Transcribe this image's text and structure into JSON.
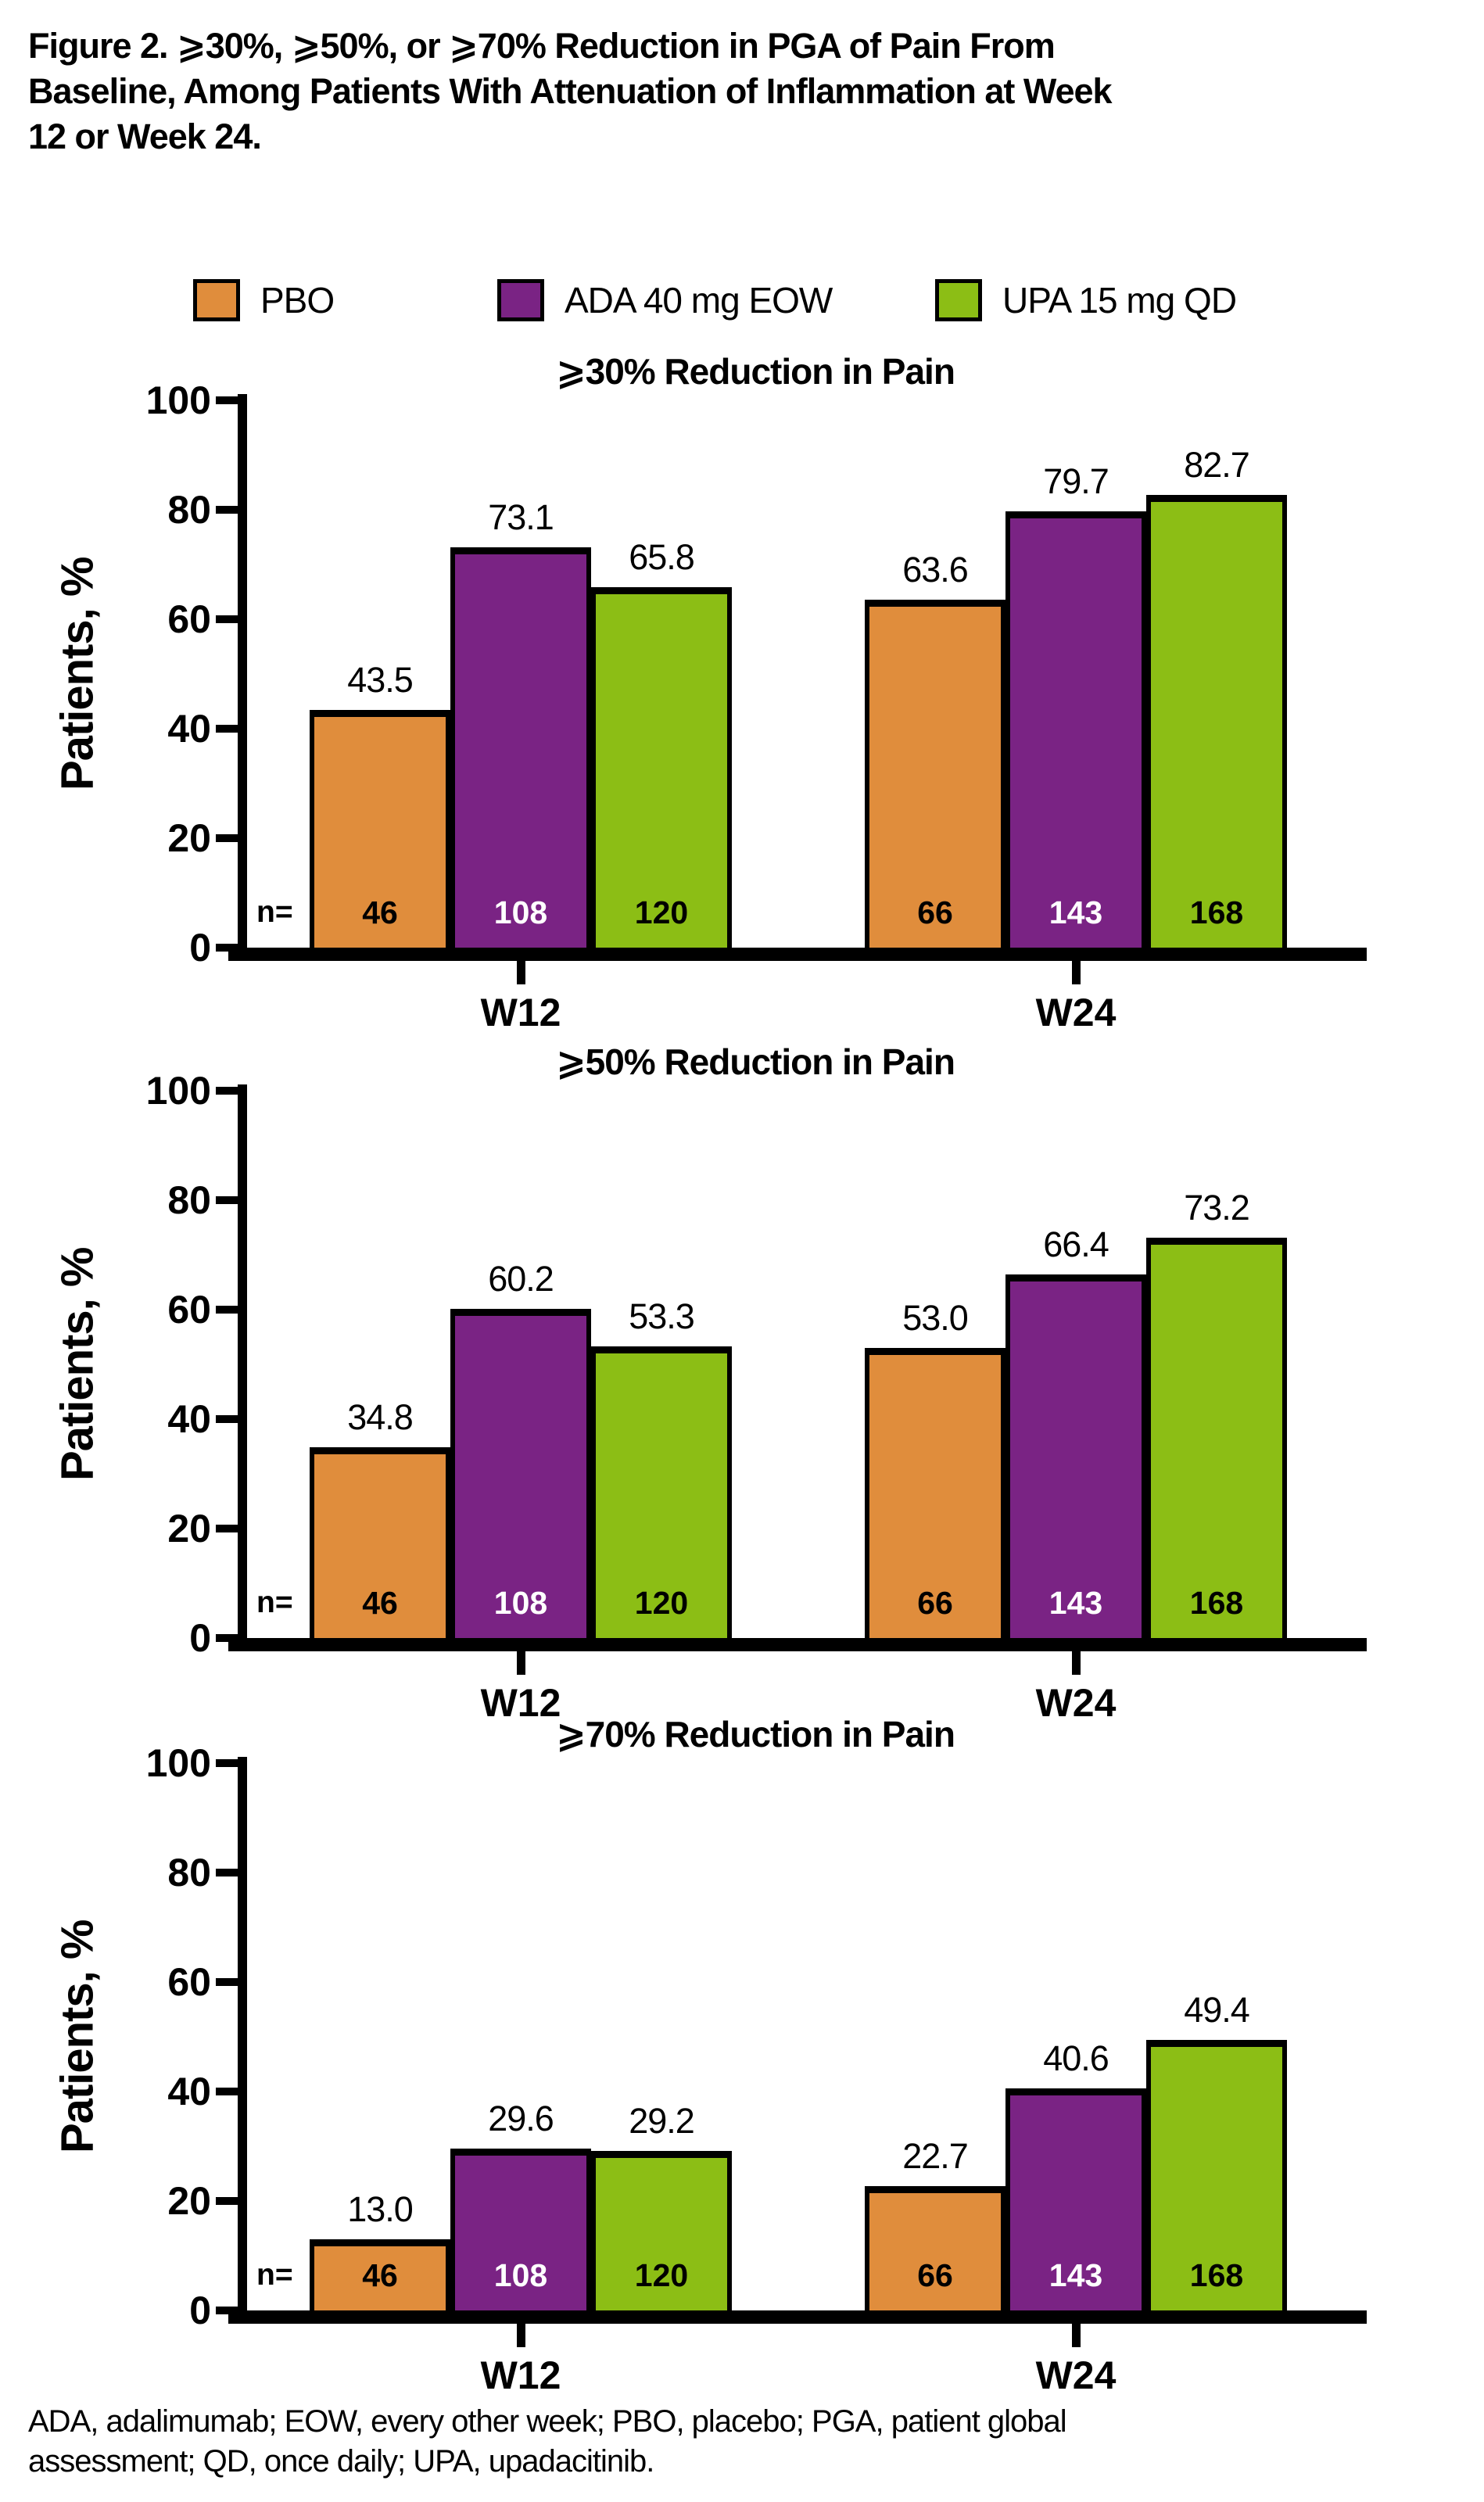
{
  "title_lines": [
    "Figure 2. ⩾30%, ⩾50%, or ⩾70% Reduction in PGA of Pain From",
    "Baseline, Among Patients With Attenuation of Inflammation at Week",
    "12 or Week 24."
  ],
  "legend": {
    "items": [
      {
        "label": "PBO",
        "color": "#E08D3C",
        "n_text_color": "#000000"
      },
      {
        "label": "ADA 40 mg EOW",
        "color": "#7A2384",
        "n_text_color": "#FFFFFF"
      },
      {
        "label": "UPA 15 mg QD",
        "color": "#8CBE15",
        "n_text_color": "#000000"
      }
    ]
  },
  "axis": {
    "ylabel": "Patients, %",
    "y_ticks": [
      0,
      20,
      40,
      60,
      80,
      100
    ],
    "ylim": [
      0,
      100
    ],
    "n_prefix": "n="
  },
  "chart_data": [
    {
      "type": "bar",
      "title": "⩾30% Reduction in Pain",
      "categories": [
        "W12",
        "W24"
      ],
      "series": [
        {
          "name": "PBO",
          "values": [
            43.5,
            63.6
          ]
        },
        {
          "name": "ADA 40 mg EOW",
          "values": [
            73.1,
            79.7
          ]
        },
        {
          "name": "UPA 15 mg QD",
          "values": [
            65.8,
            82.7
          ]
        }
      ],
      "n_values": [
        [
          46,
          108,
          120
        ],
        [
          66,
          143,
          168
        ]
      ],
      "ylabel": "Patients, %",
      "ylim": [
        0,
        100
      ]
    },
    {
      "type": "bar",
      "title": "⩾50% Reduction in Pain",
      "categories": [
        "W12",
        "W24"
      ],
      "series": [
        {
          "name": "PBO",
          "values": [
            34.8,
            53.0
          ]
        },
        {
          "name": "ADA 40 mg EOW",
          "values": [
            60.2,
            66.4
          ]
        },
        {
          "name": "UPA 15 mg QD",
          "values": [
            53.3,
            73.2
          ]
        }
      ],
      "n_values": [
        [
          46,
          108,
          120
        ],
        [
          66,
          143,
          168
        ]
      ],
      "ylabel": "Patients, %",
      "ylim": [
        0,
        100
      ]
    },
    {
      "type": "bar",
      "title": "⩾70% Reduction in Pain",
      "categories": [
        "W12",
        "W24"
      ],
      "series": [
        {
          "name": "PBO",
          "values": [
            13.0,
            22.7
          ]
        },
        {
          "name": "ADA 40 mg EOW",
          "values": [
            29.6,
            40.6
          ]
        },
        {
          "name": "UPA 15 mg QD",
          "values": [
            29.2,
            49.4
          ]
        }
      ],
      "n_values": [
        [
          46,
          108,
          120
        ],
        [
          66,
          143,
          168
        ]
      ],
      "ylabel": "Patients, %",
      "ylim": [
        0,
        100
      ]
    }
  ],
  "footnote_lines": [
    "ADA, adalimumab; EOW, every other week; PBO, placebo; PGA, patient global",
    "assessment; QD, once daily; UPA, upadacitinib."
  ]
}
